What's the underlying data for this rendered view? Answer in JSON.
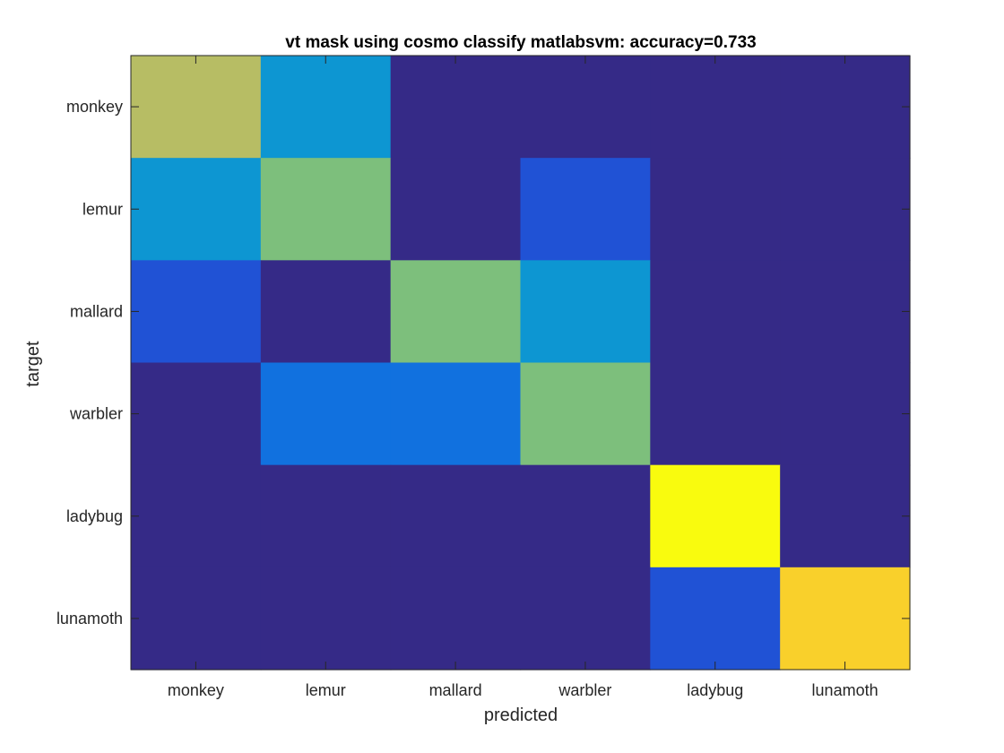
{
  "chart_data": {
    "type": "heatmap",
    "title": "vt mask using cosmo classify matlabsvm: accuracy=0.733",
    "xlabel": "predicted",
    "ylabel": "target",
    "x_categories": [
      "monkey",
      "lemur",
      "mallard",
      "warbler",
      "ladybug",
      "lunamoth"
    ],
    "y_categories": [
      "monkey",
      "lemur",
      "mallard",
      "warbler",
      "ladybug",
      "lunamoth"
    ],
    "values": [
      [
        7,
        3,
        0,
        0,
        0,
        0
      ],
      [
        3,
        6,
        0,
        1,
        0,
        0
      ],
      [
        1,
        0,
        6,
        3,
        0,
        0
      ],
      [
        0,
        2,
        2,
        6,
        0,
        0
      ],
      [
        0,
        0,
        0,
        0,
        10,
        0
      ],
      [
        0,
        0,
        0,
        0,
        1,
        9
      ]
    ],
    "color_range": [
      0,
      10
    ],
    "colormap": "parula",
    "grid": false,
    "legend": "none"
  }
}
